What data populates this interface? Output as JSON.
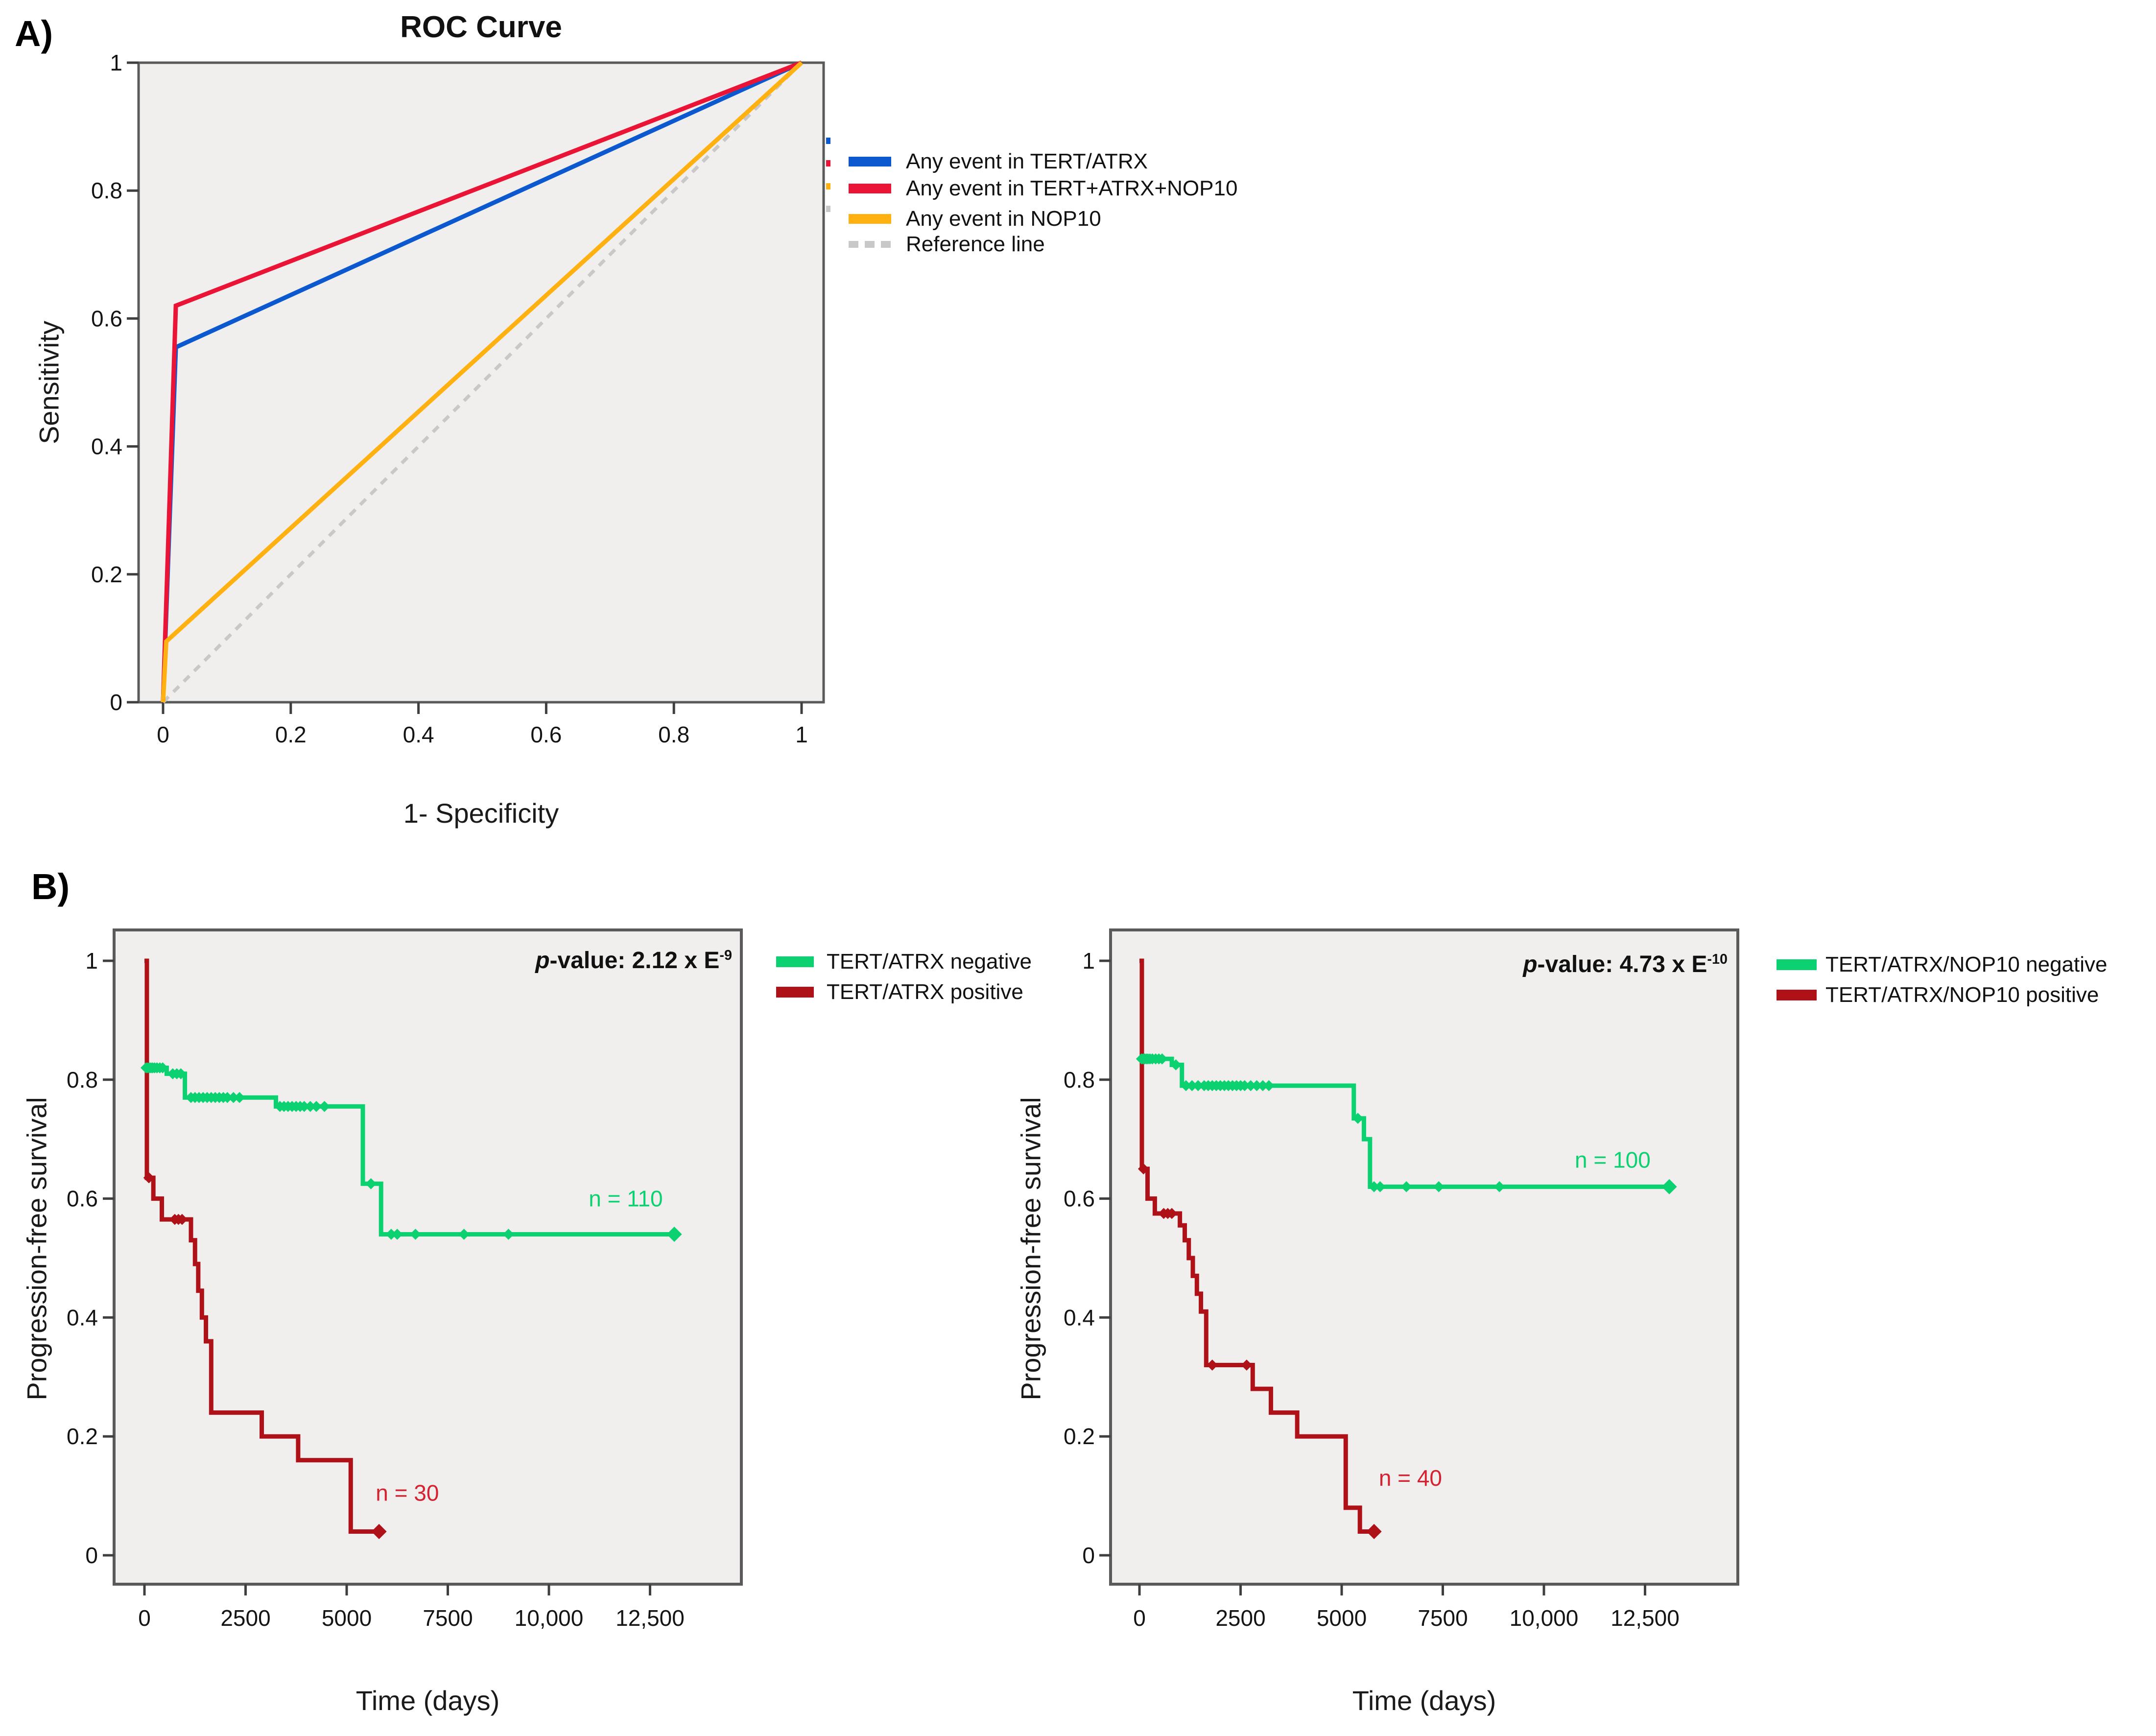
{
  "panels": {
    "a": "A)",
    "b": "B)"
  },
  "colors": {
    "page_bg": "#ffffff",
    "plot_bg": "#f0efee",
    "plot_border": "#5a5a5a",
    "tick": "#3f3f3f",
    "text": "#141414",
    "roc_blue": "#0c59cf",
    "roc_red": "#ea1437",
    "roc_orange": "#ffb112",
    "reference_gray": "#c8c8c8",
    "km_green": "#0bd170",
    "km_dark_red": "#ae1117",
    "n_label_red": "#d42230"
  },
  "chart_data": [
    {
      "id": "roc",
      "type": "line",
      "title": "ROC Curve",
      "xlabel": "1- Specificity",
      "ylabel": "Sensitivity",
      "xlim": [
        0,
        1
      ],
      "ylim": [
        0,
        1
      ],
      "grid": false,
      "legend_position": "right",
      "xticks": [
        {
          "v": 0,
          "label": "0"
        },
        {
          "v": 0.2,
          "label": "0.2"
        },
        {
          "v": 0.4,
          "label": "0.4"
        },
        {
          "v": 0.6,
          "label": "0.6"
        },
        {
          "v": 0.8,
          "label": "0.8"
        },
        {
          "v": 1,
          "label": "1"
        }
      ],
      "yticks": [
        {
          "v": 0,
          "label": "0"
        },
        {
          "v": 0.2,
          "label": "0.2"
        },
        {
          "v": 0.4,
          "label": "0.4"
        },
        {
          "v": 0.6,
          "label": "0.6"
        },
        {
          "v": 0.8,
          "label": "0.8"
        },
        {
          "v": 1,
          "label": "1"
        }
      ],
      "series": [
        {
          "name": "Any event in TERT/ATRX",
          "color": "#0c59cf",
          "style": "solid",
          "z": 2,
          "points": [
            [
              0,
              0
            ],
            [
              0.02,
              0.555
            ],
            [
              1,
              1
            ]
          ]
        },
        {
          "name": "Any event in TERT+ATRX+NOP10",
          "color": "#ea1437",
          "style": "solid",
          "z": 3,
          "points": [
            [
              0,
              0
            ],
            [
              0.02,
              0.62
            ],
            [
              1,
              1
            ]
          ]
        },
        {
          "name": "Any event in NOP10",
          "color": "#ffb112",
          "style": "solid",
          "z": 4,
          "points": [
            [
              0,
              0
            ],
            [
              0.005,
              0.095
            ],
            [
              1,
              1
            ]
          ]
        },
        {
          "name": "Reference line",
          "color": "#c8c8c8",
          "style": "dashed",
          "z": 1,
          "points": [
            [
              0,
              0
            ],
            [
              1,
              1
            ]
          ]
        }
      ]
    },
    {
      "id": "km_tert_atrx",
      "type": "km_step",
      "xlabel": "Time (days)",
      "ylabel": "Progression-free survival",
      "xlim": [
        0,
        13800
      ],
      "ylim": [
        0,
        1.02
      ],
      "pvalue": {
        "prefix": "p",
        "text": "-value: 2.12 x E",
        "sup": "-9"
      },
      "xticks": [
        {
          "v": 0,
          "label": "0"
        },
        {
          "v": 2500,
          "label": "2500"
        },
        {
          "v": 5000,
          "label": "5000"
        },
        {
          "v": 7500,
          "label": "7500"
        },
        {
          "v": 10000,
          "label": "10,000"
        },
        {
          "v": 12500,
          "label": "12,500"
        }
      ],
      "yticks": [
        {
          "v": 1,
          "label": "1"
        },
        {
          "v": 0.8,
          "label": "0.8"
        },
        {
          "v": 0.6,
          "label": "0.6"
        },
        {
          "v": 0.4,
          "label": "0.4"
        },
        {
          "v": 0.2,
          "label": "0.2"
        },
        {
          "v": 0,
          "label": "0"
        }
      ],
      "series": [
        {
          "name": "TERT/ATRX negative",
          "color": "#0bd170",
          "z": 2,
          "n_label": "n = 110",
          "n_label_pos": [
            11900,
            0.6
          ],
          "n_label_color": "#0bd170",
          "steps": [
            [
              0,
              0.82
            ],
            [
              550,
              0.81
            ],
            [
              1000,
              0.77
            ],
            [
              3250,
              0.755
            ],
            [
              5400,
              0.625
            ],
            [
              5850,
              0.54
            ],
            [
              13100,
              0.54
            ]
          ],
          "censors": [
            [
              40,
              0.82
            ],
            [
              80,
              0.82
            ],
            [
              120,
              0.82
            ],
            [
              160,
              0.82
            ],
            [
              200,
              0.82
            ],
            [
              250,
              0.82
            ],
            [
              310,
              0.82
            ],
            [
              380,
              0.82
            ],
            [
              450,
              0.82
            ],
            [
              700,
              0.81
            ],
            [
              800,
              0.81
            ],
            [
              900,
              0.81
            ],
            [
              1150,
              0.77
            ],
            [
              1250,
              0.77
            ],
            [
              1350,
              0.77
            ],
            [
              1450,
              0.77
            ],
            [
              1550,
              0.77
            ],
            [
              1650,
              0.77
            ],
            [
              1750,
              0.77
            ],
            [
              1850,
              0.77
            ],
            [
              1950,
              0.77
            ],
            [
              2050,
              0.77
            ],
            [
              2200,
              0.77
            ],
            [
              2350,
              0.77
            ],
            [
              3350,
              0.755
            ],
            [
              3450,
              0.755
            ],
            [
              3550,
              0.755
            ],
            [
              3650,
              0.755
            ],
            [
              3750,
              0.755
            ],
            [
              3850,
              0.755
            ],
            [
              3950,
              0.755
            ],
            [
              4100,
              0.755
            ],
            [
              4250,
              0.755
            ],
            [
              4450,
              0.755
            ],
            [
              5600,
              0.625
            ],
            [
              6100,
              0.54
            ],
            [
              6250,
              0.54
            ],
            [
              6700,
              0.54
            ],
            [
              7900,
              0.54
            ],
            [
              9000,
              0.54
            ]
          ],
          "end_marker": [
            13100,
            0.54
          ]
        },
        {
          "name": "TERT/ATRX positive",
          "color": "#ae1117",
          "z": 1,
          "n_label": "n = 30",
          "n_label_pos": [
            6500,
            0.105
          ],
          "n_label_color": "#d42230",
          "steps": [
            [
              0,
              1.0
            ],
            [
              60,
              0.635
            ],
            [
              220,
              0.6
            ],
            [
              430,
              0.565
            ],
            [
              1150,
              0.53
            ],
            [
              1250,
              0.49
            ],
            [
              1330,
              0.445
            ],
            [
              1420,
              0.4
            ],
            [
              1520,
              0.36
            ],
            [
              1650,
              0.24
            ],
            [
              2900,
              0.2
            ],
            [
              3800,
              0.16
            ],
            [
              5100,
              0.04
            ],
            [
              5800,
              0.04
            ]
          ],
          "censors": [
            [
              110,
              0.635
            ],
            [
              750,
              0.565
            ],
            [
              840,
              0.565
            ],
            [
              930,
              0.565
            ]
          ],
          "end_marker": [
            5800,
            0.04
          ]
        }
      ]
    },
    {
      "id": "km_tert_atrx_nop10",
      "type": "km_step",
      "xlabel": "Time (days)",
      "ylabel": "Progression-free survival",
      "xlim": [
        0,
        13800
      ],
      "ylim": [
        0,
        1.02
      ],
      "pvalue": {
        "prefix": "p",
        "text": "-value: 4.73 x E",
        "sup": "-10"
      },
      "xticks": [
        {
          "v": 0,
          "label": "0"
        },
        {
          "v": 2500,
          "label": "2500"
        },
        {
          "v": 5000,
          "label": "5000"
        },
        {
          "v": 7500,
          "label": "7500"
        },
        {
          "v": 10000,
          "label": "10,000"
        },
        {
          "v": 12500,
          "label": "12,500"
        }
      ],
      "yticks": [
        {
          "v": 1,
          "label": "1"
        },
        {
          "v": 0.8,
          "label": "0.8"
        },
        {
          "v": 0.6,
          "label": "0.6"
        },
        {
          "v": 0.4,
          "label": "0.4"
        },
        {
          "v": 0.2,
          "label": "0.2"
        },
        {
          "v": 0,
          "label": "0"
        }
      ],
      "series": [
        {
          "name": "TERT/ATRX/NOP10 negative",
          "color": "#0bd170",
          "z": 2,
          "n_label": "n = 100",
          "n_label_pos": [
            11700,
            0.665
          ],
          "n_label_color": "#0bd170",
          "steps": [
            [
              0,
              0.835
            ],
            [
              800,
              0.825
            ],
            [
              1050,
              0.79
            ],
            [
              5300,
              0.735
            ],
            [
              5550,
              0.7
            ],
            [
              5700,
              0.62
            ],
            [
              13100,
              0.62
            ]
          ],
          "censors": [
            [
              50,
              0.835
            ],
            [
              90,
              0.835
            ],
            [
              130,
              0.835
            ],
            [
              170,
              0.835
            ],
            [
              210,
              0.835
            ],
            [
              260,
              0.835
            ],
            [
              320,
              0.835
            ],
            [
              400,
              0.835
            ],
            [
              480,
              0.835
            ],
            [
              560,
              0.835
            ],
            [
              900,
              0.825
            ],
            [
              1150,
              0.79
            ],
            [
              1300,
              0.79
            ],
            [
              1450,
              0.79
            ],
            [
              1600,
              0.79
            ],
            [
              1700,
              0.79
            ],
            [
              1800,
              0.79
            ],
            [
              1900,
              0.79
            ],
            [
              2000,
              0.79
            ],
            [
              2100,
              0.79
            ],
            [
              2200,
              0.79
            ],
            [
              2300,
              0.79
            ],
            [
              2400,
              0.79
            ],
            [
              2500,
              0.79
            ],
            [
              2600,
              0.79
            ],
            [
              2750,
              0.79
            ],
            [
              2900,
              0.79
            ],
            [
              3050,
              0.79
            ],
            [
              3200,
              0.79
            ],
            [
              5400,
              0.735
            ],
            [
              5800,
              0.62
            ],
            [
              5950,
              0.62
            ],
            [
              6600,
              0.62
            ],
            [
              7400,
              0.62
            ],
            [
              8900,
              0.62
            ]
          ],
          "end_marker": [
            13100,
            0.62
          ]
        },
        {
          "name": "TERT/ATRX/NOP10 positive",
          "color": "#ae1117",
          "z": 1,
          "n_label": "n = 40",
          "n_label_pos": [
            6700,
            0.13
          ],
          "n_label_color": "#d42230",
          "steps": [
            [
              0,
              1.0
            ],
            [
              60,
              0.65
            ],
            [
              200,
              0.6
            ],
            [
              380,
              0.575
            ],
            [
              1000,
              0.555
            ],
            [
              1120,
              0.53
            ],
            [
              1220,
              0.5
            ],
            [
              1320,
              0.47
            ],
            [
              1420,
              0.44
            ],
            [
              1520,
              0.41
            ],
            [
              1650,
              0.32
            ],
            [
              2800,
              0.28
            ],
            [
              3250,
              0.24
            ],
            [
              3900,
              0.2
            ],
            [
              5100,
              0.08
            ],
            [
              5450,
              0.04
            ],
            [
              5800,
              0.04
            ]
          ],
          "censors": [
            [
              100,
              0.65
            ],
            [
              600,
              0.575
            ],
            [
              700,
              0.575
            ],
            [
              800,
              0.575
            ],
            [
              1800,
              0.32
            ],
            [
              2650,
              0.32
            ]
          ],
          "end_marker": [
            5800,
            0.04
          ]
        }
      ]
    }
  ]
}
